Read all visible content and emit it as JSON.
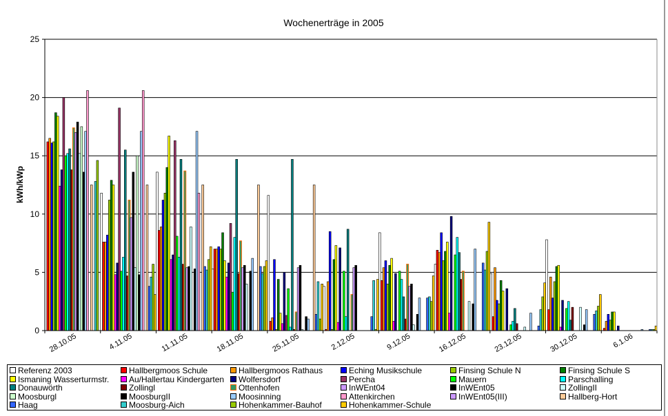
{
  "chart_data": {
    "type": "bar",
    "title": "Wochenerträge in 2005",
    "xlabel": "",
    "ylabel": "kWh/kWp",
    "ylim": [
      0,
      25
    ],
    "yticks": [
      "0",
      "5",
      "10",
      "15",
      "20",
      "25"
    ],
    "grid": true,
    "legend_position": "bottom",
    "categories": [
      "28.10.05",
      "4.11.05",
      "11.11.05",
      "18.11.05",
      "25.11.05",
      "2.12.05",
      "9.12.05",
      "16.12.05",
      "23.12.05",
      "30.12.05",
      "6.1.06"
    ],
    "series": [
      {
        "name": "Referenz 2003",
        "color": "#FFFFFF",
        "values": [
          15.0,
          11.8,
          13.6,
          5.3,
          11.6,
          3.8,
          8.4,
          5.7,
          4.9,
          7.8,
          0
        ]
      },
      {
        "name": "Hallbergmoos Schule",
        "color": "#FF0000",
        "values": [
          16.2,
          7.6,
          8.6,
          7.0,
          0.8,
          0.1,
          4.3,
          6.9,
          1.2,
          1.8,
          0.2
        ]
      },
      {
        "name": "Hallbergmoos Rathaus",
        "color": "#FF9900",
        "values": [
          16.5,
          7.6,
          8.9,
          7.0,
          1.1,
          4.2,
          5.4,
          6.7,
          5.4,
          4.6,
          0.8
        ]
      },
      {
        "name": "Eching Musikschule",
        "color": "#0000FF",
        "values": [
          16.1,
          8.2,
          11.2,
          7.2,
          6.1,
          8.5,
          6.0,
          8.4,
          2.6,
          2.8,
          1.4
        ]
      },
      {
        "name": "Finsing Schule N",
        "color": "#99CC00",
        "values": [
          16.2,
          11.2,
          11.8,
          7.0,
          0.1,
          0.1,
          4.0,
          6.0,
          2.3,
          4.2,
          0.9
        ]
      },
      {
        "name": "Finsing Schule S",
        "color": "#008000",
        "values": [
          18.7,
          12.9,
          14.0,
          8.4,
          4.4,
          6.1,
          5.6,
          6.8,
          4.3,
          5.5,
          1.6
        ]
      },
      {
        "name": "Ismaning Wasserturmstr.",
        "color": "#FFFF00",
        "values": [
          18.4,
          12.5,
          16.7,
          6.0,
          1.5,
          7.3,
          6.2,
          7.6,
          3.4,
          5.6,
          1.6
        ]
      },
      {
        "name": "Au/Hallertau Kindergarten",
        "color": "#FF00FF",
        "values": [
          12.4,
          4.8,
          6.1,
          4.6,
          0.6,
          0.7,
          0.8,
          1.5,
          0,
          0.3,
          0
        ]
      },
      {
        "name": "Wolfersdorf",
        "color": "#000080",
        "values": [
          13.8,
          5.8,
          6.5,
          5.8,
          5.0,
          7.1,
          4.9,
          9.8,
          3.6,
          2.6,
          0.4
        ]
      },
      {
        "name": "Percha",
        "color": "#993366",
        "values": [
          20.0,
          19.1,
          16.3,
          9.2,
          1.3,
          0,
          0,
          0,
          0,
          0,
          0
        ]
      },
      {
        "name": "Mauern",
        "color": "#00FF00",
        "values": [
          15.0,
          5.1,
          8.1,
          3.3,
          3.6,
          5.1,
          5.1,
          6.5,
          0.5,
          1.9,
          0
        ]
      },
      {
        "name": "Parschalling",
        "color": "#00FFFF",
        "values": [
          15.2,
          6.3,
          6.3,
          8.0,
          0.3,
          1.2,
          4.4,
          8.0,
          0.8,
          2.5,
          0
        ]
      },
      {
        "name": "Donauwörth",
        "color": "#008080",
        "values": [
          15.6,
          15.5,
          14.7,
          14.7,
          14.7,
          8.7,
          2.9,
          6.7,
          1.9,
          0.9,
          0
        ]
      },
      {
        "name": "Zollingl",
        "color": "#800000",
        "values": [
          13.8,
          4.7,
          5.7,
          4.9,
          0.1,
          0,
          1.0,
          4.4,
          0.6,
          2.0,
          0
        ]
      },
      {
        "name": "Ottenhofen",
        "color": "#339966",
        "border": "#FF6600",
        "values": [
          17.4,
          11.2,
          13.7,
          7.7,
          1.6,
          3.1,
          5.7,
          5.1,
          0,
          0,
          0
        ]
      },
      {
        "name": "InWEnt04",
        "color": "#CC99FF",
        "values": [
          17.0,
          9.7,
          5.4,
          5.4,
          5.4,
          5.4,
          3.8,
          0,
          0,
          0,
          0
        ]
      },
      {
        "name": "InWEnt05",
        "color": "#000000",
        "values": [
          17.9,
          13.6,
          5.5,
          5.6,
          5.6,
          5.6,
          4.0,
          0,
          0,
          0,
          0
        ]
      },
      {
        "name": "ZollingII",
        "color": "#CCFFFF",
        "values": [
          15.2,
          5.4,
          8.9,
          4.0,
          0.1,
          0,
          0.5,
          2.5,
          0.3,
          2.0,
          0
        ]
      },
      {
        "name": "Moosburgl",
        "color": "#CCFFCC",
        "values": [
          17.5,
          15.0,
          0,
          0,
          0,
          0,
          0,
          0,
          0,
          0,
          0
        ]
      },
      {
        "name": "MoosburgII",
        "color": "#000000",
        "values": [
          13.6,
          4.8,
          5.3,
          5.1,
          1.2,
          0,
          1.4,
          2.3,
          0,
          0.5,
          0
        ]
      },
      {
        "name": "Moosinning",
        "color": "#99CCFF",
        "values": [
          17.1,
          17.1,
          17.1,
          6.2,
          1.0,
          0,
          2.8,
          7.0,
          1.5,
          1.8,
          0.1
        ]
      },
      {
        "name": "Attenkirchen",
        "color": "#FF99CC",
        "values": [
          20.6,
          20.6,
          11.8,
          0,
          0,
          0,
          0,
          0,
          0,
          0,
          0
        ]
      },
      {
        "name": "InWEnt05(III)",
        "color": "#CC99FF",
        "values": [
          0,
          0,
          0,
          0,
          0,
          0,
          0,
          0,
          0,
          0,
          0
        ]
      },
      {
        "name": "Hallberg-Hort",
        "color": "#FFCC99",
        "values": [
          12.5,
          12.5,
          12.5,
          12.5,
          12.5,
          0,
          0,
          0,
          0,
          0,
          0
        ]
      },
      {
        "name": "Haag",
        "color": "#3366FF",
        "values": [
          0,
          3.8,
          5.5,
          5.5,
          1.4,
          1.2,
          2.8,
          5.8,
          0.4,
          1.4,
          0.1
        ]
      },
      {
        "name": "Moosburg-Aich",
        "color": "#33CCCC",
        "values": [
          12.8,
          4.6,
          5.2,
          4.9,
          4.2,
          4.3,
          2.9,
          5.2,
          1.8,
          1.7,
          0.1
        ]
      },
      {
        "name": "Hohenkammer-Bauhof",
        "color": "#99CC00",
        "values": [
          14.6,
          5.7,
          6.1,
          5.5,
          1.0,
          0.1,
          2.5,
          6.8,
          2.9,
          2.1,
          0.1
        ]
      },
      {
        "name": "Hohenkammer-Schule",
        "color": "#FFCC00",
        "values": [
          0,
          3.1,
          7.2,
          6.0,
          4.0,
          4.4,
          4.7,
          9.3,
          4.1,
          3.1,
          0.4
        ]
      }
    ]
  }
}
